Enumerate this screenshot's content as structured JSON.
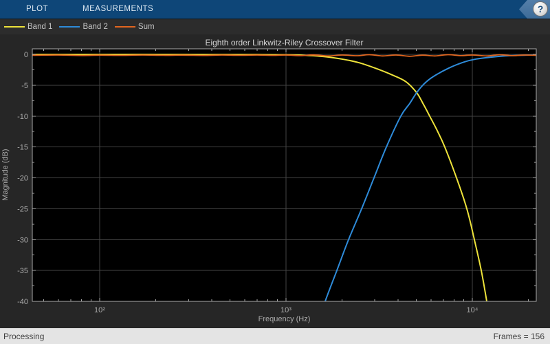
{
  "toolstrip": {
    "tabs": [
      {
        "label": "PLOT"
      },
      {
        "label": "MEASUREMENTS"
      }
    ],
    "help_button": {
      "glyph": "?"
    }
  },
  "legend": {
    "items": [
      {
        "label": "Band 1",
        "color": "#EDE23A"
      },
      {
        "label": "Band 2",
        "color": "#2E8BD9"
      },
      {
        "label": "Sum",
        "color": "#E2661F"
      }
    ]
  },
  "status_bar": {
    "left_text": "Processing",
    "right_text": "Frames = 156"
  },
  "chart_data": {
    "type": "line",
    "title": "Eighth order Linkwitz-Riley Crossover Filter",
    "xlabel": "Frequency (Hz)",
    "ylabel": "Magnitude (dB)",
    "x_scale": "log",
    "xlim": [
      43.5,
      22050
    ],
    "ylim": [
      -40,
      0.9
    ],
    "grid": true,
    "legend_position": "top-bar",
    "x_major_ticks": {
      "values": [
        100,
        1000,
        10000
      ],
      "labels": [
        "10²",
        "10³",
        "10⁴"
      ]
    },
    "x_minor_ticks": [
      50,
      60,
      70,
      80,
      90,
      200,
      300,
      400,
      500,
      600,
      700,
      800,
      900,
      2000,
      3000,
      4000,
      5000,
      6000,
      7000,
      8000,
      9000,
      20000
    ],
    "y_major_ticks": {
      "values": [
        0,
        -5,
        -10,
        -15,
        -20,
        -25,
        -30,
        -35,
        -40
      ],
      "labels": [
        "0",
        "-5",
        "-10",
        "-15",
        "-20",
        "-25",
        "-30",
        "-35",
        "-40"
      ]
    },
    "y_minor_ticks": [
      -2.5,
      -7.5,
      -12.5,
      -17.5,
      -22.5,
      -27.5,
      -32.5,
      -37.5
    ],
    "colors": {
      "figure_bg": "#262626",
      "plot_bg": "#000000",
      "grid": "#444444",
      "axis": "#A8A8A8",
      "tick_label": "#ABABAB",
      "title": "#D4D4D4"
    },
    "series": [
      {
        "name": "Band 1",
        "color": "#EDE23A",
        "points": [
          [
            43.5,
            0
          ],
          [
            100,
            0
          ],
          [
            200,
            0
          ],
          [
            400,
            -0.02
          ],
          [
            700,
            -0.03
          ],
          [
            1000,
            -0.06
          ],
          [
            1230,
            -0.12
          ],
          [
            1600,
            -0.35
          ],
          [
            2040,
            -0.8
          ],
          [
            2500,
            -1.4
          ],
          [
            3120,
            -2.4
          ],
          [
            3700,
            -3.3
          ],
          [
            4390,
            -4.4
          ],
          [
            5030,
            -6.2
          ],
          [
            5450,
            -8
          ],
          [
            5910,
            -10
          ],
          [
            6500,
            -12.4
          ],
          [
            7120,
            -15
          ],
          [
            8230,
            -20
          ],
          [
            9350,
            -25
          ],
          [
            10260,
            -30
          ],
          [
            11170,
            -35
          ],
          [
            11960,
            -40
          ],
          [
            12300,
            -42.5
          ]
        ]
      },
      {
        "name": "Band 2",
        "color": "#2E8BD9",
        "points": [
          [
            1540,
            -42.5
          ],
          [
            1624,
            -40
          ],
          [
            1876,
            -35
          ],
          [
            2168,
            -30
          ],
          [
            2548,
            -25
          ],
          [
            2968,
            -20
          ],
          [
            3459,
            -15
          ],
          [
            4135,
            -10
          ],
          [
            4600,
            -8
          ],
          [
            5030,
            -6.2
          ],
          [
            5500,
            -4.8
          ],
          [
            6170,
            -3.6
          ],
          [
            7500,
            -2.2
          ],
          [
            9000,
            -1.25
          ],
          [
            10500,
            -0.75
          ],
          [
            13000,
            -0.4
          ],
          [
            16000,
            -0.2
          ],
          [
            19000,
            -0.12
          ],
          [
            22050,
            -0.08
          ]
        ]
      },
      {
        "name": "Sum",
        "color": "#E2661F",
        "points": [
          [
            43.5,
            -0.15
          ],
          [
            60,
            -0.1
          ],
          [
            80,
            -0.18
          ],
          [
            100,
            -0.12
          ],
          [
            130,
            -0.16
          ],
          [
            170,
            -0.1
          ],
          [
            220,
            -0.15
          ],
          [
            280,
            -0.12
          ],
          [
            360,
            -0.17
          ],
          [
            450,
            -0.1
          ],
          [
            560,
            -0.15
          ],
          [
            700,
            -0.1
          ],
          [
            850,
            -0.16
          ],
          [
            1000,
            -0.1
          ],
          [
            1200,
            -0.2
          ],
          [
            1400,
            -0.08
          ],
          [
            1700,
            -0.25
          ],
          [
            2000,
            -0.1
          ],
          [
            2400,
            -0.22
          ],
          [
            2800,
            -0.05
          ],
          [
            3300,
            -0.25
          ],
          [
            3900,
            -0.1
          ],
          [
            4600,
            -0.3
          ],
          [
            5400,
            -0.12
          ],
          [
            6300,
            -0.25
          ],
          [
            7400,
            -0.05
          ],
          [
            8700,
            -0.2
          ],
          [
            10000,
            -0.1
          ],
          [
            12000,
            -0.25
          ],
          [
            14000,
            -0.06
          ],
          [
            16500,
            -0.2
          ],
          [
            19000,
            -0.1
          ],
          [
            22050,
            -0.15
          ]
        ]
      }
    ]
  }
}
